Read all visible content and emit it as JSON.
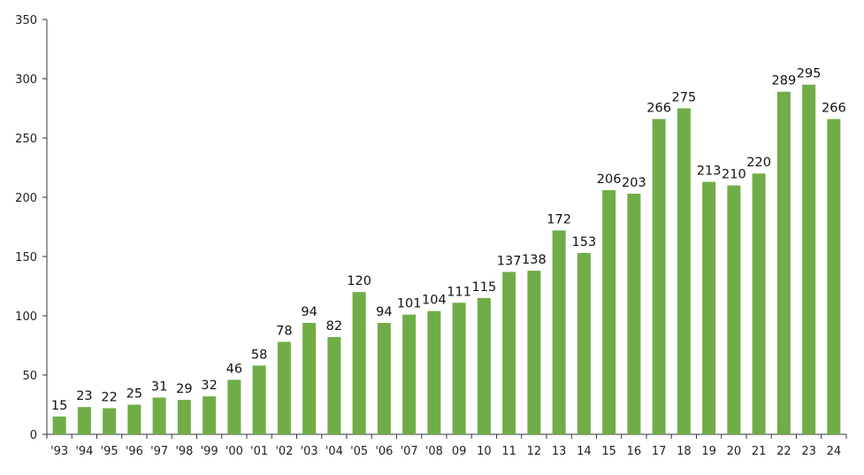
{
  "chart_data": {
    "type": "bar",
    "title": "",
    "xlabel": "",
    "ylabel": "",
    "ylim": [
      0,
      350
    ],
    "yticks": [
      0,
      50,
      100,
      150,
      200,
      250,
      300,
      350
    ],
    "grid": false,
    "legend": "none",
    "bar_color": "#70ad47",
    "categories": [
      "'93",
      "'94",
      "'95",
      "'96",
      "'97",
      "'98",
      "'99",
      "'00",
      "'01",
      "'02",
      "'03",
      "'04",
      "'05",
      "'06",
      "'07",
      "'08",
      "09",
      "10",
      "11",
      "12",
      "13",
      "14",
      "15",
      "16",
      "17",
      "18",
      "19",
      "20",
      "21",
      "22",
      "23",
      "24"
    ],
    "values": [
      15,
      23,
      22,
      25,
      31,
      29,
      32,
      46,
      58,
      78,
      94,
      82,
      120,
      94,
      101,
      104,
      111,
      115,
      137,
      138,
      172,
      153,
      206,
      203,
      266,
      275,
      213,
      210,
      220,
      289,
      295,
      266
    ]
  }
}
